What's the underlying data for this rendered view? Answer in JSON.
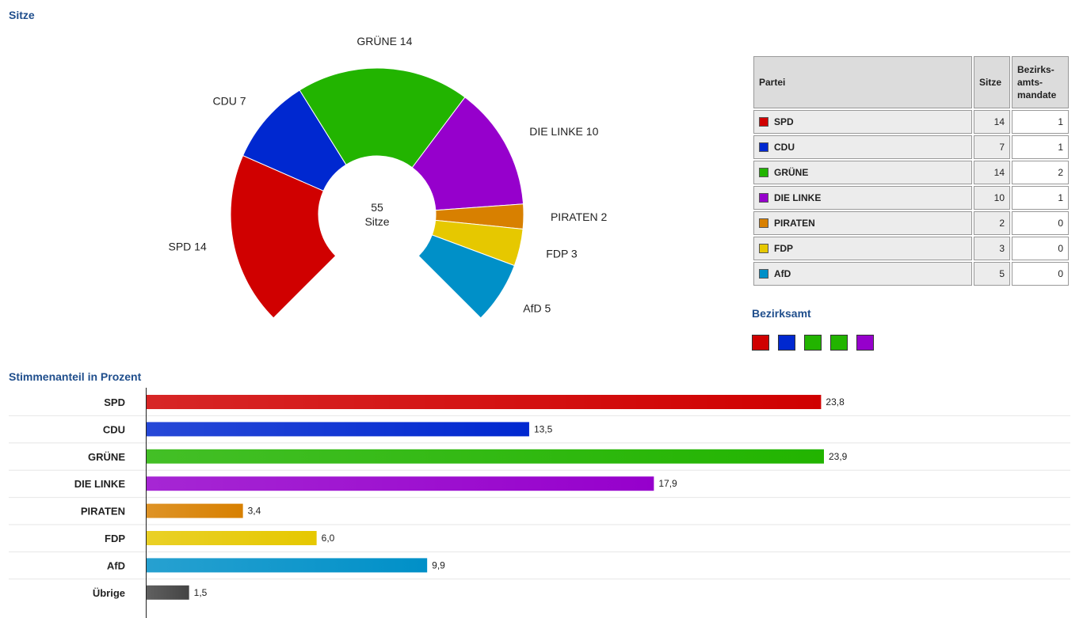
{
  "titles": {
    "seats": "Sitze",
    "bezirksamt": "Bezirksamt",
    "votes": "Stimmenanteil in Prozent"
  },
  "seats_table": {
    "headers": {
      "party": "Partei",
      "seats": "Sitze",
      "mandates": "Bezirks-amts-mandate"
    },
    "rows": [
      {
        "party": "SPD",
        "seats": "14",
        "mandates": "1",
        "color": "#d00000"
      },
      {
        "party": "CDU",
        "seats": "7",
        "mandates": "1",
        "color": "#0028d0"
      },
      {
        "party": "GRÜNE",
        "seats": "14",
        "mandates": "2",
        "color": "#22b400"
      },
      {
        "party": "DIE LINKE",
        "seats": "10",
        "mandates": "1",
        "color": "#9600cc"
      },
      {
        "party": "PIRATEN",
        "seats": "2",
        "mandates": "0",
        "color": "#d88000"
      },
      {
        "party": "FDP",
        "seats": "3",
        "mandates": "0",
        "color": "#e6c800"
      },
      {
        "party": "AfD",
        "seats": "5",
        "mandates": "0",
        "color": "#0090c8"
      }
    ]
  },
  "bezirksamt_colors": [
    "#d00000",
    "#0028d0",
    "#22b400",
    "#22b400",
    "#9600cc"
  ],
  "chart_data": [
    {
      "type": "pie",
      "title": "Sitze",
      "center_value": "55",
      "center_label": "Sitze",
      "categories": [
        "SPD",
        "CDU",
        "GRÜNE",
        "DIE LINKE",
        "PIRATEN",
        "FDP",
        "AfD"
      ],
      "values": [
        14,
        7,
        14,
        10,
        2,
        3,
        5
      ],
      "labels": [
        "SPD 14",
        "CDU 7",
        "GRÜNE 14",
        "DIE LINKE 10",
        "PIRATEN 2",
        "FDP 3",
        "AfD 5"
      ],
      "colors": [
        "#d00000",
        "#0028d0",
        "#22b400",
        "#9600cc",
        "#d88000",
        "#e6c800",
        "#0090c8"
      ]
    },
    {
      "type": "bar",
      "title": "Stimmenanteil in Prozent",
      "orientation": "horizontal",
      "categories": [
        "SPD",
        "CDU",
        "GRÜNE",
        "DIE LINKE",
        "PIRATEN",
        "FDP",
        "AfD",
        "Übrige"
      ],
      "values": [
        23.8,
        13.5,
        23.9,
        17.9,
        3.4,
        6.0,
        9.9,
        1.5
      ],
      "value_labels": [
        "23,8",
        "13,5",
        "23,9",
        "17,9",
        "3,4",
        "6,0",
        "9,9",
        "1,5"
      ],
      "colors": [
        "#d00000",
        "#0028d0",
        "#22b400",
        "#9600cc",
        "#d88000",
        "#e6c800",
        "#0090c8",
        "#444444"
      ],
      "xlim": [
        0,
        23.9
      ]
    }
  ]
}
